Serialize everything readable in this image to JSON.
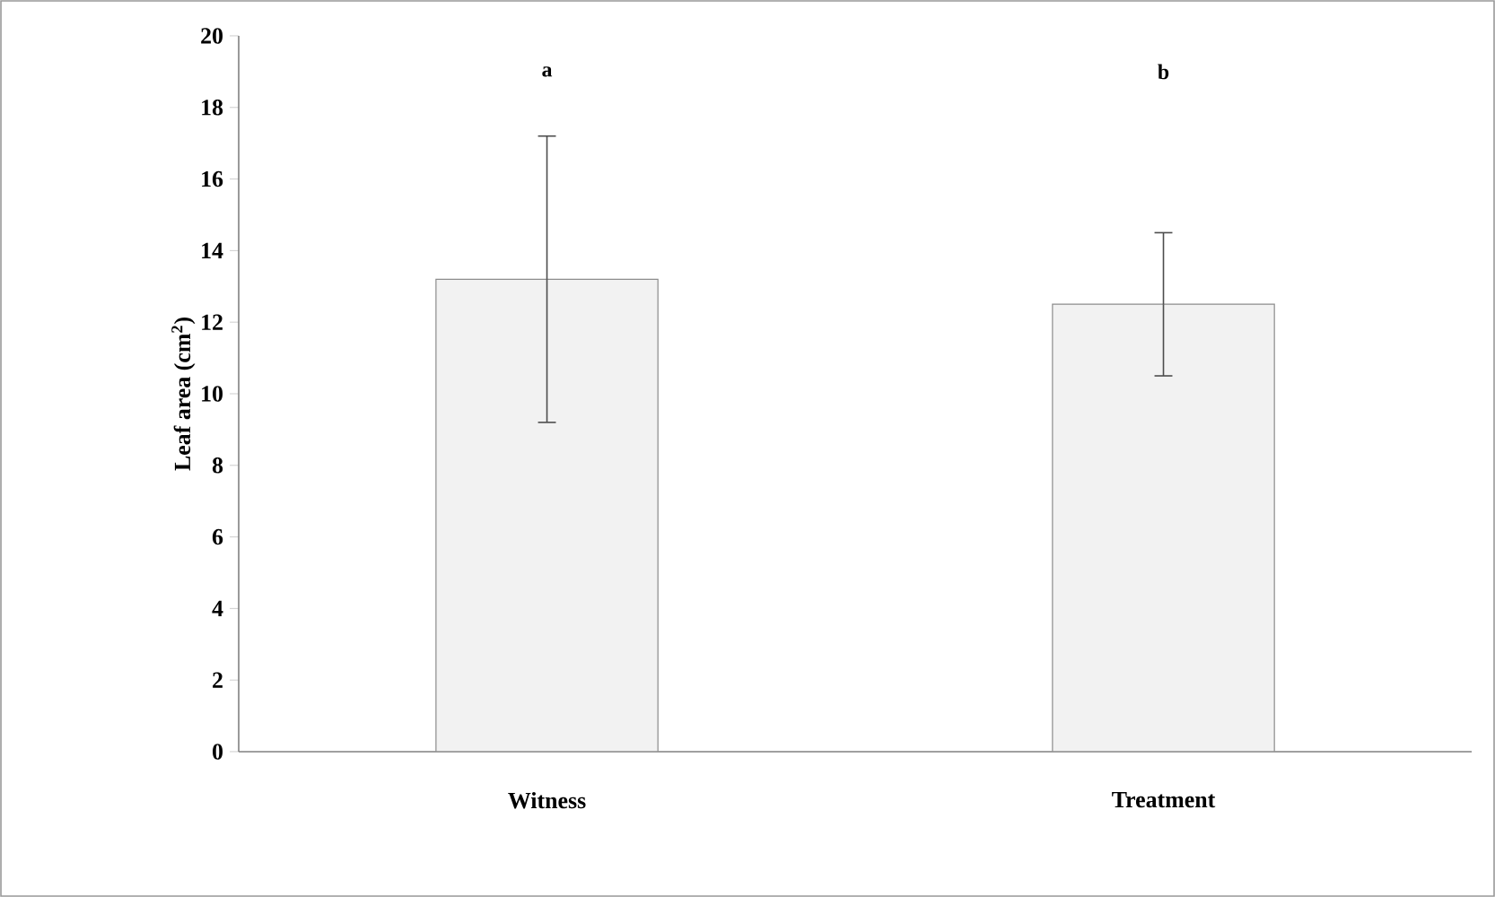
{
  "chart_data": {
    "type": "bar",
    "ylabel": "Leaf area (cm$^{2}$)",
    "categories": [
      "Witness",
      "Treatment"
    ],
    "values": [
      13.2,
      12.5
    ],
    "errors": [
      4.0,
      2.0
    ],
    "color": "#f2f2f2",
    "ylim": [
      0,
      20
    ],
    "yticks": [
      0,
      2,
      4,
      6,
      8,
      10,
      12,
      14,
      16,
      18,
      20
    ],
    "annotations": [
      "a",
      "b"
    ],
    "grid": false
  }
}
